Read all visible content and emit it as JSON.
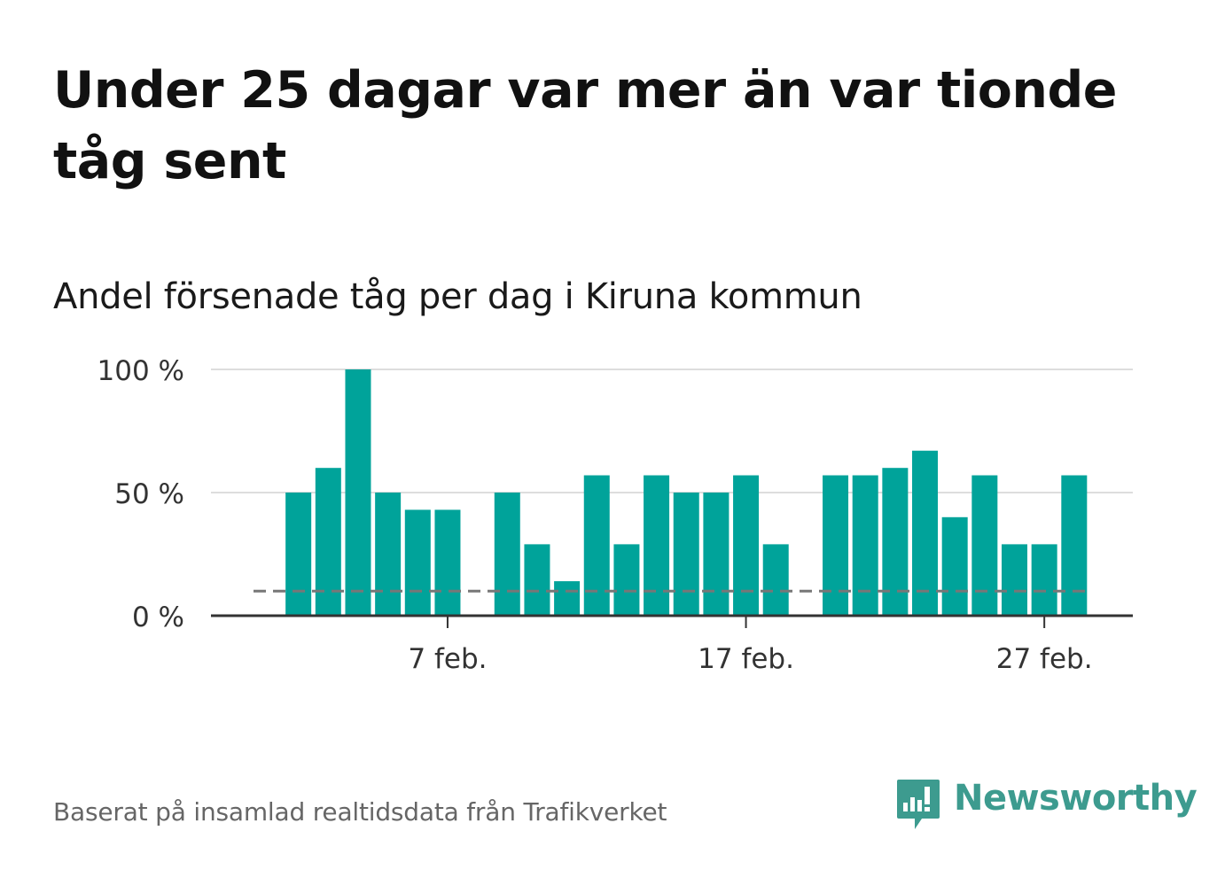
{
  "title": "Under 25 dagar var mer än var tionde tåg sent",
  "subtitle": "Andel försenade tåg per dag i Kiruna kommun",
  "source": "Baserat på insamlad realtidsdata från Trafikverket",
  "brand": {
    "name": "Newsworthy",
    "color": "#3d9b8f"
  },
  "chart_data": {
    "type": "bar",
    "title": "Andel försenade tåg per dag i Kiruna kommun",
    "x_unit": "day of February",
    "days": [
      1,
      2,
      3,
      4,
      5,
      6,
      7,
      8,
      9,
      10,
      11,
      12,
      13,
      14,
      15,
      16,
      17,
      18,
      19,
      20,
      21,
      22,
      23,
      24,
      25,
      26,
      27,
      28
    ],
    "values": [
      null,
      50,
      60,
      100,
      50,
      43,
      43,
      null,
      50,
      29,
      14,
      57,
      29,
      57,
      50,
      50,
      57,
      29,
      null,
      57,
      57,
      60,
      67,
      40,
      57,
      29,
      29,
      57
    ],
    "x_ticks": [
      {
        "day": 7,
        "label": "7 feb."
      },
      {
        "day": 17,
        "label": "17 feb."
      },
      {
        "day": 27,
        "label": "27 feb."
      }
    ],
    "y_ticks": [
      {
        "value": 0,
        "label": "0 %"
      },
      {
        "value": 50,
        "label": "50 %"
      },
      {
        "value": 100,
        "label": "100 %"
      }
    ],
    "ylim": [
      0,
      100
    ],
    "reference_line": {
      "value": 10,
      "style": "dashed",
      "color": "#777777"
    },
    "bar_color": "#00a39a",
    "grid": true
  }
}
